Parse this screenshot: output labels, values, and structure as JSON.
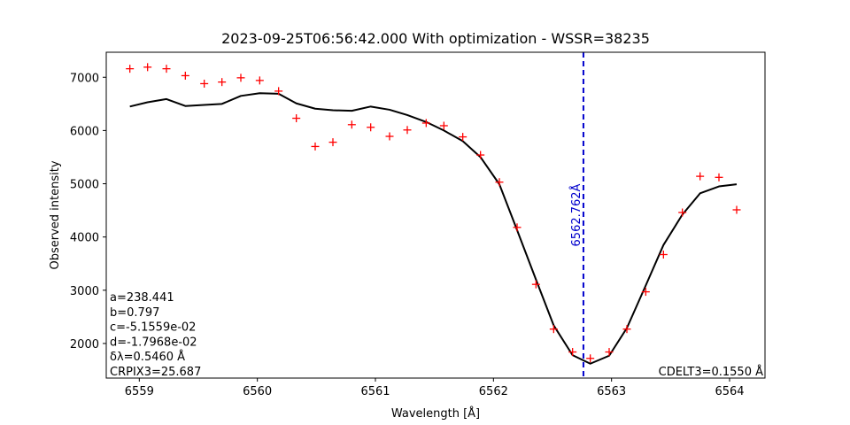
{
  "chart_data": {
    "type": "line",
    "title": "2023-09-25T06:56:42.000 With optimization - WSSR=38235",
    "xlabel": "Wavelength [Å]",
    "ylabel": "Observed intensity",
    "xlim": [
      6558.72,
      6564.3
    ],
    "ylim": [
      1350,
      7470
    ],
    "xticks": [
      6559,
      6560,
      6561,
      6562,
      6563,
      6564
    ],
    "yticks": [
      2000,
      3000,
      4000,
      5000,
      6000,
      7000
    ],
    "series": [
      {
        "kind": "scatter",
        "marker": "+",
        "color": "#ff0000",
        "x": [
          6558.92,
          6559.07,
          6559.23,
          6559.39,
          6559.55,
          6559.7,
          6559.86,
          6560.02,
          6560.18,
          6560.33,
          6560.49,
          6560.64,
          6560.8,
          6560.96,
          6561.12,
          6561.27,
          6561.43,
          6561.58,
          6561.74,
          6561.89,
          6562.05,
          6562.2,
          6562.36,
          6562.51,
          6562.67,
          6562.82,
          6562.98,
          6563.13,
          6563.29,
          6563.44,
          6563.6,
          6563.75,
          6563.91,
          6564.06
        ],
        "y": [
          7160,
          7190,
          7160,
          7030,
          6880,
          6910,
          6990,
          6940,
          6740,
          6230,
          5700,
          5780,
          6110,
          6060,
          5890,
          6010,
          6140,
          6090,
          5880,
          5540,
          5030,
          4180,
          3110,
          2270,
          1840,
          1720,
          1840,
          2270,
          2970,
          3670,
          4460,
          5140,
          5120,
          4510
        ]
      },
      {
        "kind": "line",
        "color": "#000000",
        "x": [
          6558.92,
          6559.07,
          6559.23,
          6559.39,
          6559.55,
          6559.7,
          6559.86,
          6560.02,
          6560.18,
          6560.33,
          6560.49,
          6560.64,
          6560.8,
          6560.96,
          6561.12,
          6561.27,
          6561.43,
          6561.58,
          6561.74,
          6561.89,
          6562.05,
          6562.2,
          6562.36,
          6562.51,
          6562.67,
          6562.82,
          6562.98,
          6563.13,
          6563.29,
          6563.44,
          6563.6,
          6563.75,
          6563.91,
          6564.06
        ],
        "y": [
          6450,
          6530,
          6590,
          6460,
          6480,
          6500,
          6650,
          6700,
          6690,
          6510,
          6410,
          6380,
          6370,
          6450,
          6390,
          6290,
          6160,
          6000,
          5800,
          5500,
          4990,
          4130,
          3200,
          2340,
          1780,
          1620,
          1770,
          2290,
          3090,
          3850,
          4420,
          4820,
          4950,
          4990
        ]
      }
    ],
    "vline": {
      "x": 6562.762,
      "color": "#0000cc",
      "style": "dashed",
      "label": "6562.762Å"
    },
    "annotations_left": [
      "a=238.441",
      "b=0.797",
      "c=-5.1559e-02",
      "d=-1.7968e-02",
      "δλ=0.5460 Å",
      "CRPIX3=25.687"
    ],
    "annotation_right": "CDELT3=0.1550 Å",
    "grid": false,
    "legend": "none"
  }
}
